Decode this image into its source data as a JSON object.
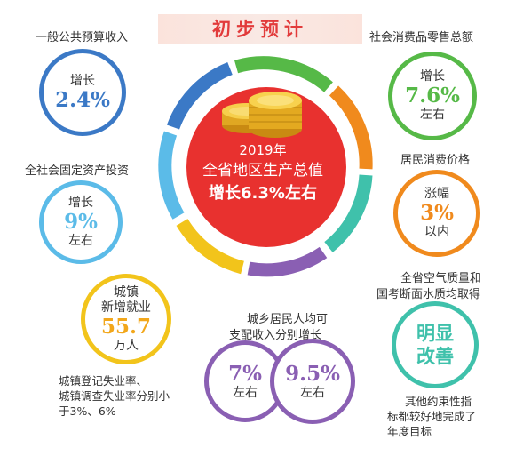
{
  "banner": {
    "title": "初步预计"
  },
  "center": {
    "line1": "2019年",
    "line2": "全省地区生产总值",
    "line3": "增长6.3%左右"
  },
  "items": {
    "public_budget": {
      "label": "一般公共预算收入",
      "top": "增长",
      "value": "2.4%"
    },
    "retail": {
      "label": "社会消费品零售总额",
      "top": "增长",
      "value": "7.6%",
      "bottom": "左右"
    },
    "fixed_asset": {
      "label": "全社会固定资产投资",
      "top": "增长",
      "value": "9%",
      "bottom": "左右"
    },
    "cpi": {
      "label": "居民消费价格",
      "top": "涨幅",
      "value": "3%",
      "bottom": "以内"
    },
    "employment": {
      "top1": "城镇",
      "top2": "新增就业",
      "value": "55.7",
      "bottom": "万人",
      "note": [
        "城镇登记失业率、",
        "城镇调查失业率分别小",
        "于3%、6%"
      ]
    },
    "income": {
      "label1": "城乡居民人均可",
      "label2": "支配收入分别增长",
      "urban": {
        "value": "7%",
        "bottom": "左右"
      },
      "rural": {
        "value": "9.5%",
        "bottom": "左右"
      }
    },
    "environment": {
      "label1": "全省空气质量和",
      "label2": "国考断面水质均取得",
      "line1": "明显",
      "line2": "改善",
      "note": [
        "其他约束性指",
        "标都较好地完成了",
        "年度目标"
      ]
    }
  },
  "colors": {
    "red": "#e8312f",
    "blue": "#3b79c6",
    "green": "#56b947",
    "cyan": "#5bbbe8",
    "orange": "#f08a1d",
    "purple": "#8a5fb3",
    "teal": "#3fc1ab",
    "yellow": "#f2c41b"
  },
  "icons": {
    "coins": "coin-stack-icon"
  }
}
